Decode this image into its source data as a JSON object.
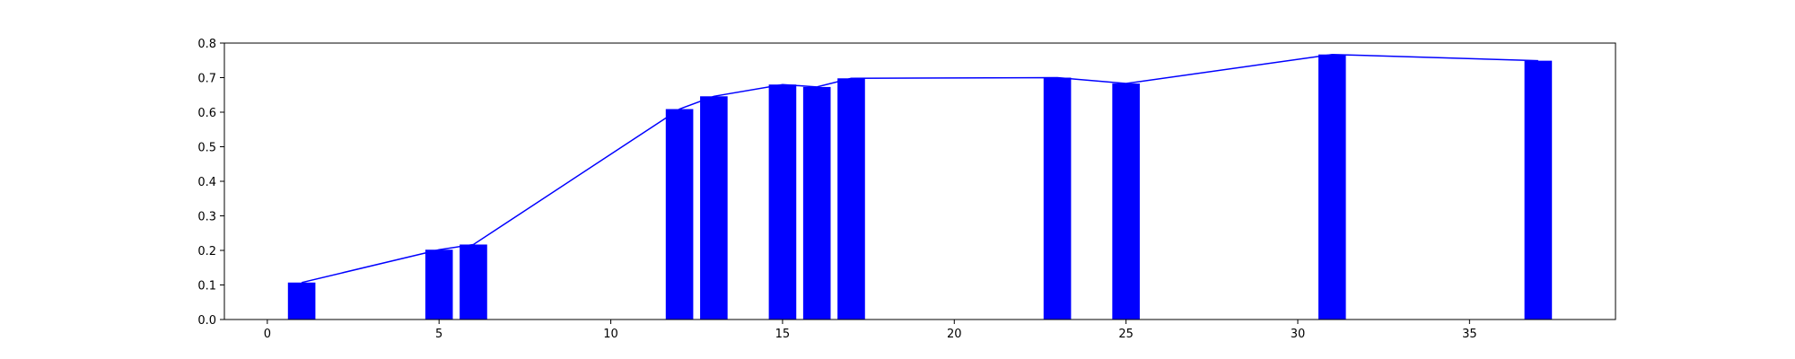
{
  "chart_data": {
    "type": "bar",
    "title": "",
    "xlabel": "",
    "ylabel": "",
    "xlim": [
      -1.25,
      39.25
    ],
    "ylim": [
      0,
      0.8
    ],
    "x_ticks": [
      0,
      5,
      10,
      15,
      20,
      25,
      30,
      35
    ],
    "x_tick_labels": [
      "0",
      "5",
      "10",
      "15",
      "20",
      "25",
      "30",
      "35"
    ],
    "y_ticks": [
      0.0,
      0.1,
      0.2,
      0.3,
      0.4,
      0.5,
      0.6,
      0.7,
      0.8
    ],
    "y_tick_labels": [
      "0.0",
      "0.1",
      "0.2",
      "0.3",
      "0.4",
      "0.5",
      "0.6",
      "0.7",
      "0.8"
    ],
    "bar_width": 0.8,
    "grid": false,
    "legend": "none",
    "series": [
      {
        "kind": "bar",
        "color": "#0000ff",
        "x": [
          1,
          5,
          6,
          12,
          13,
          15,
          16,
          17,
          23,
          25,
          31,
          37
        ],
        "values": [
          0.107,
          0.202,
          0.217,
          0.609,
          0.646,
          0.68,
          0.673,
          0.698,
          0.7,
          0.683,
          0.767,
          0.749
        ]
      },
      {
        "kind": "line",
        "color": "#0000ff",
        "x": [
          1,
          5,
          6,
          12,
          13,
          15,
          16,
          17,
          23,
          25,
          31,
          37
        ],
        "values": [
          0.107,
          0.202,
          0.217,
          0.609,
          0.646,
          0.68,
          0.673,
          0.698,
          0.7,
          0.683,
          0.767,
          0.749
        ]
      }
    ]
  }
}
